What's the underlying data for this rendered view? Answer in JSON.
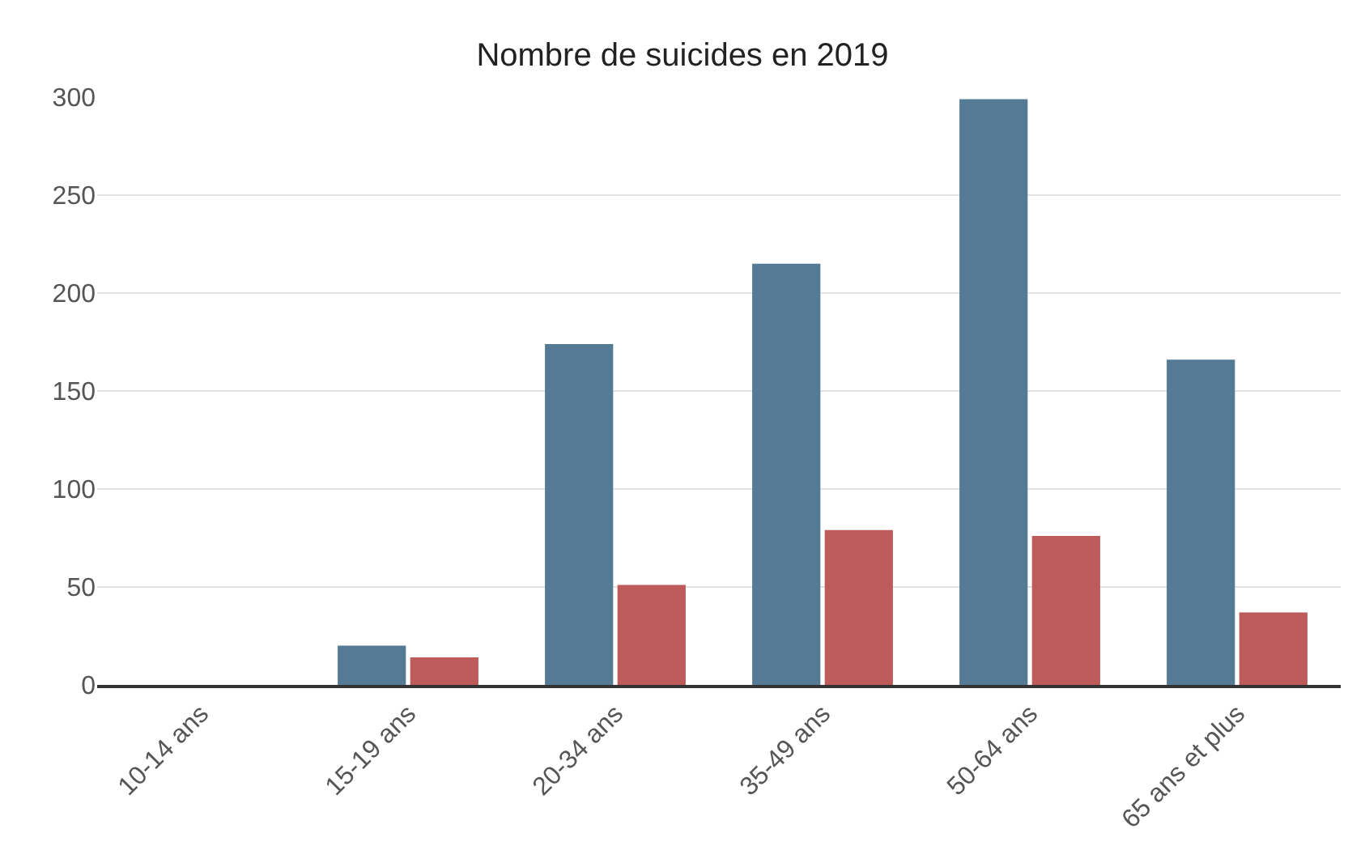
{
  "chart_data": {
    "type": "bar",
    "title": "Nombre de suicides en 2019",
    "categories": [
      "10-14 ans",
      "15-19 ans",
      "20-34 ans",
      "35-49 ans",
      "50-64 ans",
      "65 ans et plus"
    ],
    "series": [
      {
        "color": "#557a96",
        "values": [
          0,
          20,
          174,
          215,
          299,
          166
        ]
      },
      {
        "color": "#bd5a5a",
        "values": [
          0,
          14,
          51,
          79,
          76,
          37
        ]
      }
    ],
    "ylim": [
      0,
      300
    ],
    "yticks": [
      0,
      50,
      100,
      150,
      200,
      250,
      300
    ],
    "grid": "y"
  }
}
